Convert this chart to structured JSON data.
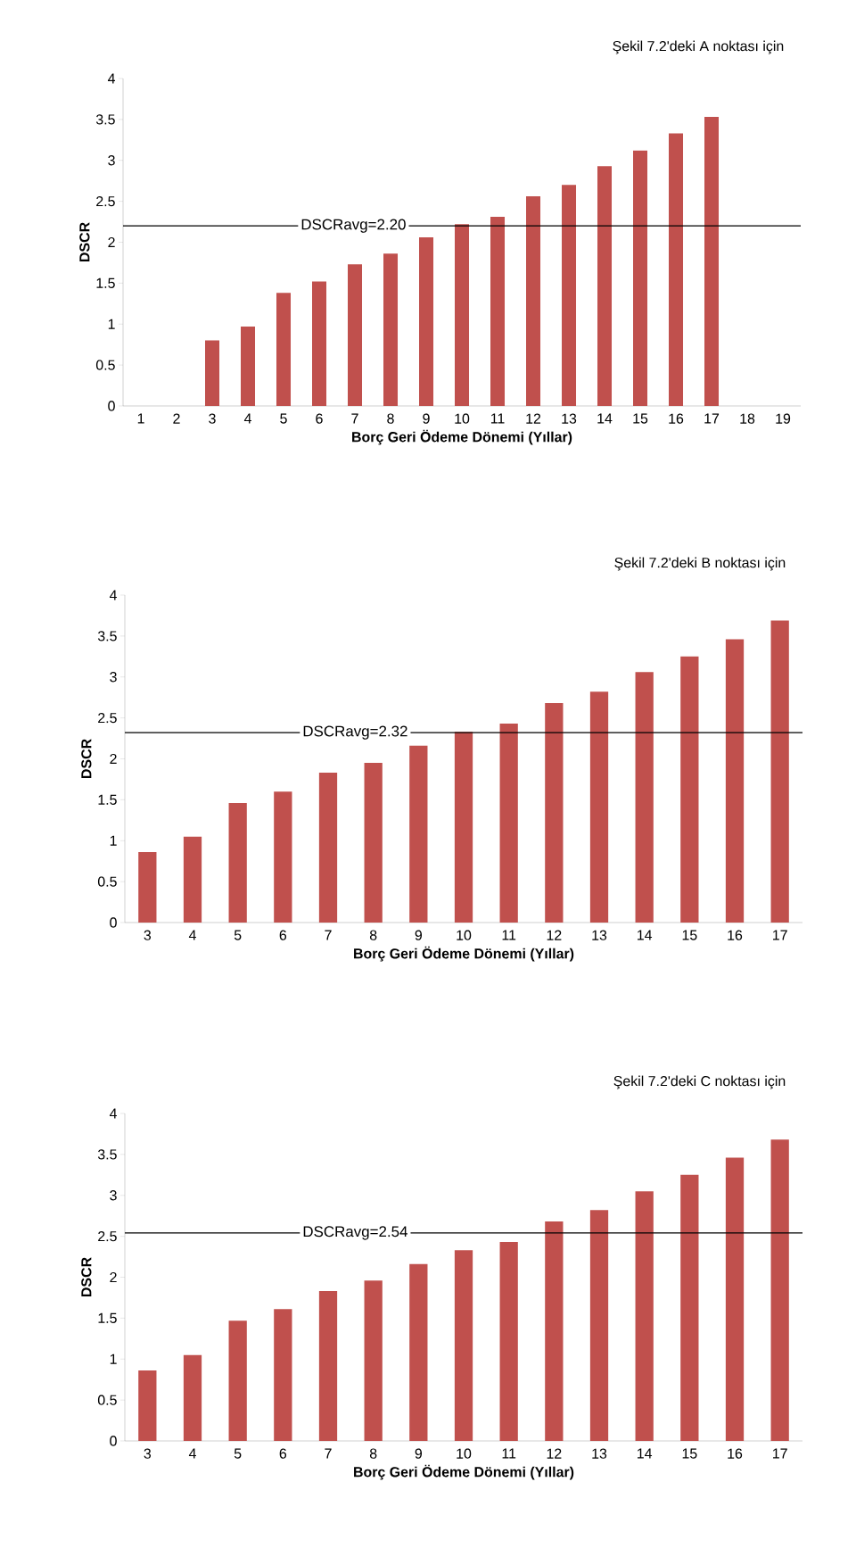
{
  "chart_data": [
    {
      "type": "bar",
      "title": "Şekil 7.2'deki A noktası için",
      "xlabel": "Borç Geri Ödeme Dönemi (Yıllar)",
      "ylabel": "DSCR",
      "color": "#c0504d",
      "categories": [
        "1",
        "2",
        "3",
        "4",
        "5",
        "6",
        "7",
        "8",
        "9",
        "10",
        "11",
        "12",
        "13",
        "14",
        "15",
        "16",
        "17",
        "18",
        "19"
      ],
      "values": [
        null,
        null,
        0.8,
        0.97,
        1.38,
        1.52,
        1.73,
        1.86,
        2.06,
        2.22,
        2.31,
        2.56,
        2.7,
        2.93,
        3.12,
        3.33,
        3.53,
        null,
        null
      ],
      "ylim": [
        0,
        4
      ],
      "yticks": [
        0,
        0.5,
        1,
        1.5,
        2,
        2.5,
        3,
        3.5,
        4
      ],
      "ref_lines": [
        {
          "axis": "y",
          "value": 2.2,
          "label": "DSCRavg=2.20",
          "color": "#000000"
        }
      ]
    },
    {
      "type": "bar",
      "title": "Şekil 7.2'deki B noktası için",
      "xlabel": "Borç Geri Ödeme Dönemi (Yıllar)",
      "ylabel": "DSCR",
      "color": "#c0504d",
      "categories": [
        "3",
        "4",
        "5",
        "6",
        "7",
        "8",
        "9",
        "10",
        "11",
        "12",
        "13",
        "14",
        "15",
        "16",
        "17"
      ],
      "values": [
        0.86,
        1.05,
        1.46,
        1.6,
        1.83,
        1.95,
        2.16,
        2.33,
        2.43,
        2.68,
        2.82,
        3.06,
        3.25,
        3.46,
        3.69
      ],
      "ylim": [
        0,
        4
      ],
      "yticks": [
        0,
        0.5,
        1,
        1.5,
        2,
        2.5,
        3,
        3.5,
        4
      ],
      "ref_lines": [
        {
          "axis": "y",
          "value": 2.32,
          "label": "DSCRavg=2.32",
          "color": "#000000"
        }
      ]
    },
    {
      "type": "bar",
      "title": "Şekil 7.2'deki C noktası için",
      "xlabel": "Borç Geri Ödeme Dönemi (Yıllar)",
      "ylabel": "DSCR",
      "color": "#c0504d",
      "categories": [
        "3",
        "4",
        "5",
        "6",
        "7",
        "8",
        "9",
        "10",
        "11",
        "12",
        "13",
        "14",
        "15",
        "16",
        "17"
      ],
      "values": [
        0.86,
        1.05,
        1.47,
        1.61,
        1.83,
        1.96,
        2.16,
        2.33,
        2.43,
        2.68,
        2.82,
        3.05,
        3.25,
        3.46,
        3.68
      ],
      "ylim": [
        0,
        4
      ],
      "yticks": [
        0,
        0.5,
        1,
        1.5,
        2,
        2.5,
        3,
        3.5,
        4
      ],
      "ref_lines": [
        {
          "axis": "y",
          "value": 2.54,
          "label": "DSCRavg=2.54",
          "color": "#000000"
        }
      ]
    }
  ]
}
